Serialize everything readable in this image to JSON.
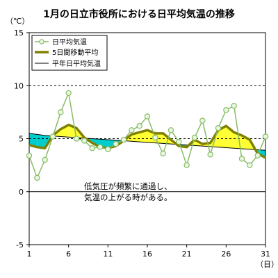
{
  "title": "1月の日立市役所における日平均気温の推移",
  "chart_data": {
    "type": "line",
    "title": "1月の日立市役所における日平均気温の推移",
    "ylabel": "（℃）",
    "xlabel": "（日）",
    "ylim": [
      -5,
      15
    ],
    "xlim": [
      1,
      31
    ],
    "yticks": [
      -5,
      0,
      5,
      10,
      15
    ],
    "xticks": [
      1,
      6,
      11,
      16,
      21,
      26,
      31
    ],
    "grid": "dotted horizontal at 5 and 10",
    "legend_position": "top-left",
    "x": [
      1,
      2,
      3,
      4,
      5,
      6,
      7,
      8,
      9,
      10,
      11,
      12,
      13,
      14,
      15,
      16,
      17,
      18,
      19,
      20,
      21,
      22,
      23,
      24,
      25,
      26,
      27,
      28,
      29,
      30,
      31
    ],
    "series": [
      {
        "name": "日平均気温",
        "style": "line-with-circle-markers",
        "color": "#88bb66",
        "values": [
          3.4,
          1.3,
          3.0,
          5.2,
          7.5,
          9.3,
          5.0,
          4.8,
          4.1,
          4.2,
          4.0,
          4.5,
          4.9,
          5.8,
          6.2,
          7.1,
          5.1,
          3.6,
          5.8,
          4.7,
          2.5,
          5.1,
          6.7,
          3.5,
          6.0,
          7.7,
          8.1,
          3.1,
          2.5,
          3.4,
          5.2
        ]
      },
      {
        "name": "5日間移動平均",
        "style": "thick-line",
        "color": "#808000",
        "values": [
          4.4,
          4.2,
          4.1,
          5.3,
          5.9,
          6.3,
          6.0,
          5.1,
          4.6,
          4.2,
          4.1,
          4.3,
          4.8,
          5.4,
          5.6,
          5.8,
          5.5,
          5.5,
          4.9,
          4.3,
          4.2,
          4.9,
          4.5,
          4.6,
          5.8,
          6.2,
          5.6,
          5.3,
          4.9,
          3.6,
          3.2
        ]
      },
      {
        "name": "平年日平均気温",
        "style": "thin-line",
        "color": "#000000",
        "values": [
          5.5,
          5.4,
          5.3,
          5.25,
          5.2,
          5.15,
          5.1,
          5.05,
          5.0,
          4.95,
          4.9,
          4.85,
          4.8,
          4.75,
          4.7,
          4.65,
          4.6,
          4.55,
          4.5,
          4.45,
          4.4,
          4.35,
          4.3,
          4.25,
          4.2,
          4.15,
          4.1,
          4.05,
          4.0,
          3.95,
          3.9
        ]
      }
    ],
    "fill_colors": {
      "above_normal": "#ffff33",
      "below_normal": "#00cccc"
    },
    "annotation_lines": [
      "低気圧が頻繁に通過し、",
      "気温の上がる時がある。"
    ]
  }
}
